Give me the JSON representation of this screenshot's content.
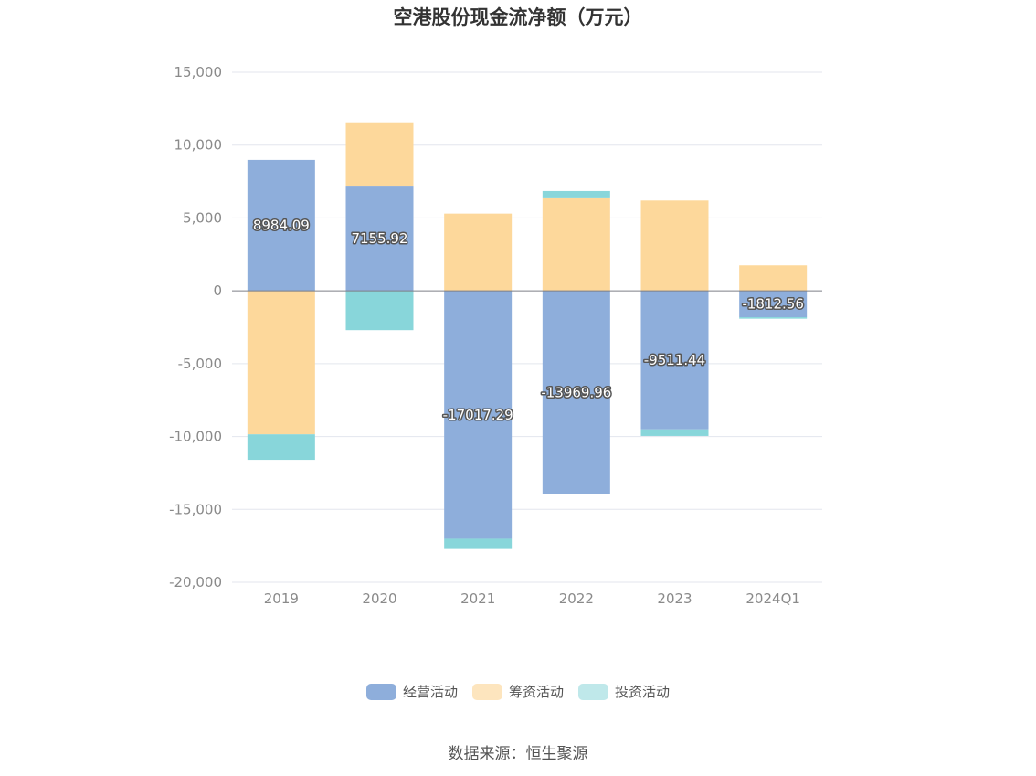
{
  "chart_data": {
    "type": "bar",
    "stacked": true,
    "title": "空港股份现金流净额（万元）",
    "source": "数据来源：恒生聚源",
    "categories": [
      "2019",
      "2020",
      "2021",
      "2022",
      "2023",
      "2024Q1"
    ],
    "ylim": [
      -20000,
      15000
    ],
    "yticks": [
      15000,
      10000,
      5000,
      0,
      -5000,
      -10000,
      -15000,
      -20000
    ],
    "ytick_labels": [
      "15,000",
      "10,000",
      "5,000",
      "0",
      "-5,000",
      "-10,000",
      "-15,000",
      "-20,000"
    ],
    "grid": true,
    "legend_position": "bottom",
    "series": [
      {
        "name": "经营活动",
        "color": "#8eaedb",
        "values": [
          8984.09,
          7155.92,
          -17017.29,
          -13969.96,
          -9511.44,
          -1812.56
        ],
        "labels": [
          "8984.09",
          "7155.92",
          "-17017.29",
          "-13969.96",
          "-9511.44",
          "-1812.56"
        ]
      },
      {
        "name": "筹资活动",
        "color": "#fdd89b",
        "values": [
          -9850,
          4350,
          5300,
          6350,
          6200,
          1750
        ]
      },
      {
        "name": "投资活动",
        "color": "#88d6da",
        "values": [
          -1750,
          -2700,
          -700,
          500,
          -450,
          -100
        ]
      }
    ],
    "legend_colors": [
      "#8eaedb",
      "#fde5be",
      "#bfe8ea"
    ]
  }
}
